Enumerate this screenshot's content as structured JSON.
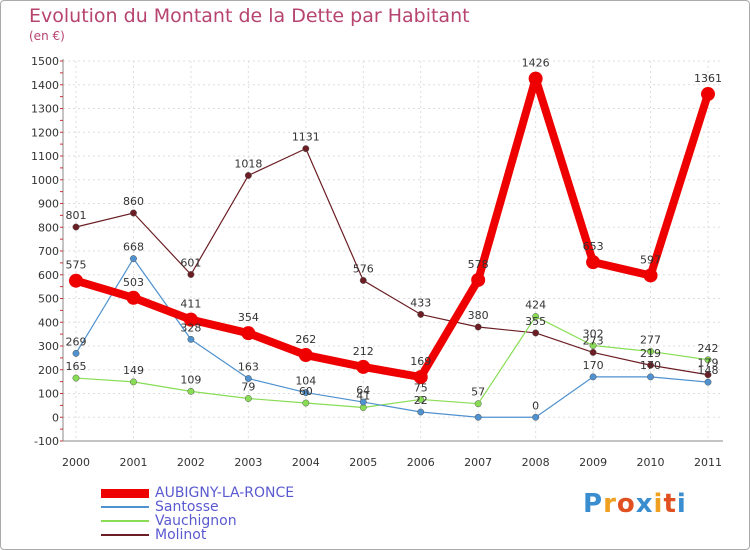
{
  "title": "Evolution du Montant de la Dette par Habitant",
  "unit_label": "(en €)",
  "logo": {
    "text": "Proxiti",
    "colors": [
      "#3a8ed0",
      "#f0a020",
      "#e05020",
      "#3a8ed0",
      "#f0a020",
      "#e05020",
      "#3a8ed0"
    ]
  },
  "chart_data": {
    "type": "line",
    "title": "Evolution du Montant de la Dette par Habitant",
    "ylabel": "(en €)",
    "xlabel": "",
    "x": [
      "2000",
      "2001",
      "2002",
      "2003",
      "2004",
      "2005",
      "2006",
      "2007",
      "2008",
      "2009",
      "2010",
      "2011"
    ],
    "ylim": [
      -100,
      1500
    ],
    "yticks": [
      -100,
      0,
      100,
      200,
      300,
      400,
      500,
      600,
      700,
      800,
      900,
      1000,
      1100,
      1200,
      1300,
      1400,
      1500
    ],
    "grid": true,
    "legend_position": "bottom-left",
    "series": [
      {
        "name": "AUBIGNY-LA-RONCE",
        "color": "#ee0000",
        "values": [
          575,
          503,
          411,
          354,
          262,
          212,
          169,
          578,
          1426,
          653,
          597,
          1361
        ],
        "labels": [
          "575",
          "503",
          "411",
          "354",
          "262",
          "212",
          "169",
          "578",
          "1426",
          "653",
          "597",
          "1361"
        ]
      },
      {
        "name": "Santosse",
        "color": "#4f92cf",
        "values": [
          269,
          668,
          328,
          163,
          104,
          64,
          22,
          0,
          0,
          170,
          170,
          148
        ],
        "labels": [
          "269",
          "668",
          "328",
          "163",
          "104",
          "64",
          "22",
          "",
          "0",
          "170",
          "170",
          "148"
        ]
      },
      {
        "name": "Vauchignon",
        "color": "#88dd55",
        "values": [
          165,
          149,
          109,
          79,
          60,
          41,
          75,
          57,
          424,
          302,
          277,
          242
        ],
        "labels": [
          "165",
          "149",
          "109",
          "79",
          "60",
          "41",
          "75",
          "57",
          "424",
          "302",
          "277",
          "242"
        ]
      },
      {
        "name": "Molinot",
        "color": "#6b1f24",
        "values": [
          801,
          860,
          601,
          1018,
          1131,
          576,
          433,
          380,
          355,
          273,
          219,
          179
        ],
        "labels": [
          "801",
          "860",
          "601",
          "1018",
          "1131",
          "576",
          "433",
          "380",
          "355",
          "273",
          "219",
          "179"
        ]
      }
    ]
  }
}
